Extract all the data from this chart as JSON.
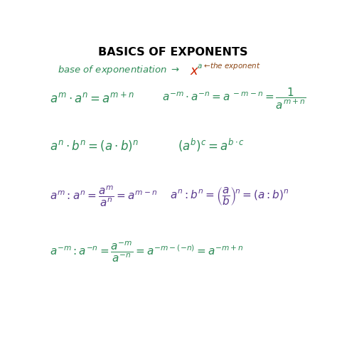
{
  "title": "BASICS OF EXPONENTS",
  "title_color": "#000000",
  "title_fontsize": 11.5,
  "background_color": "#ffffff",
  "green_color": "#2e8b57",
  "red_color": "#cc2200",
  "brown_color": "#8B4513",
  "purple_color": "#6a0dad",
  "formula_green": "#2e8b57",
  "formula_purple": "#5b3a8e"
}
